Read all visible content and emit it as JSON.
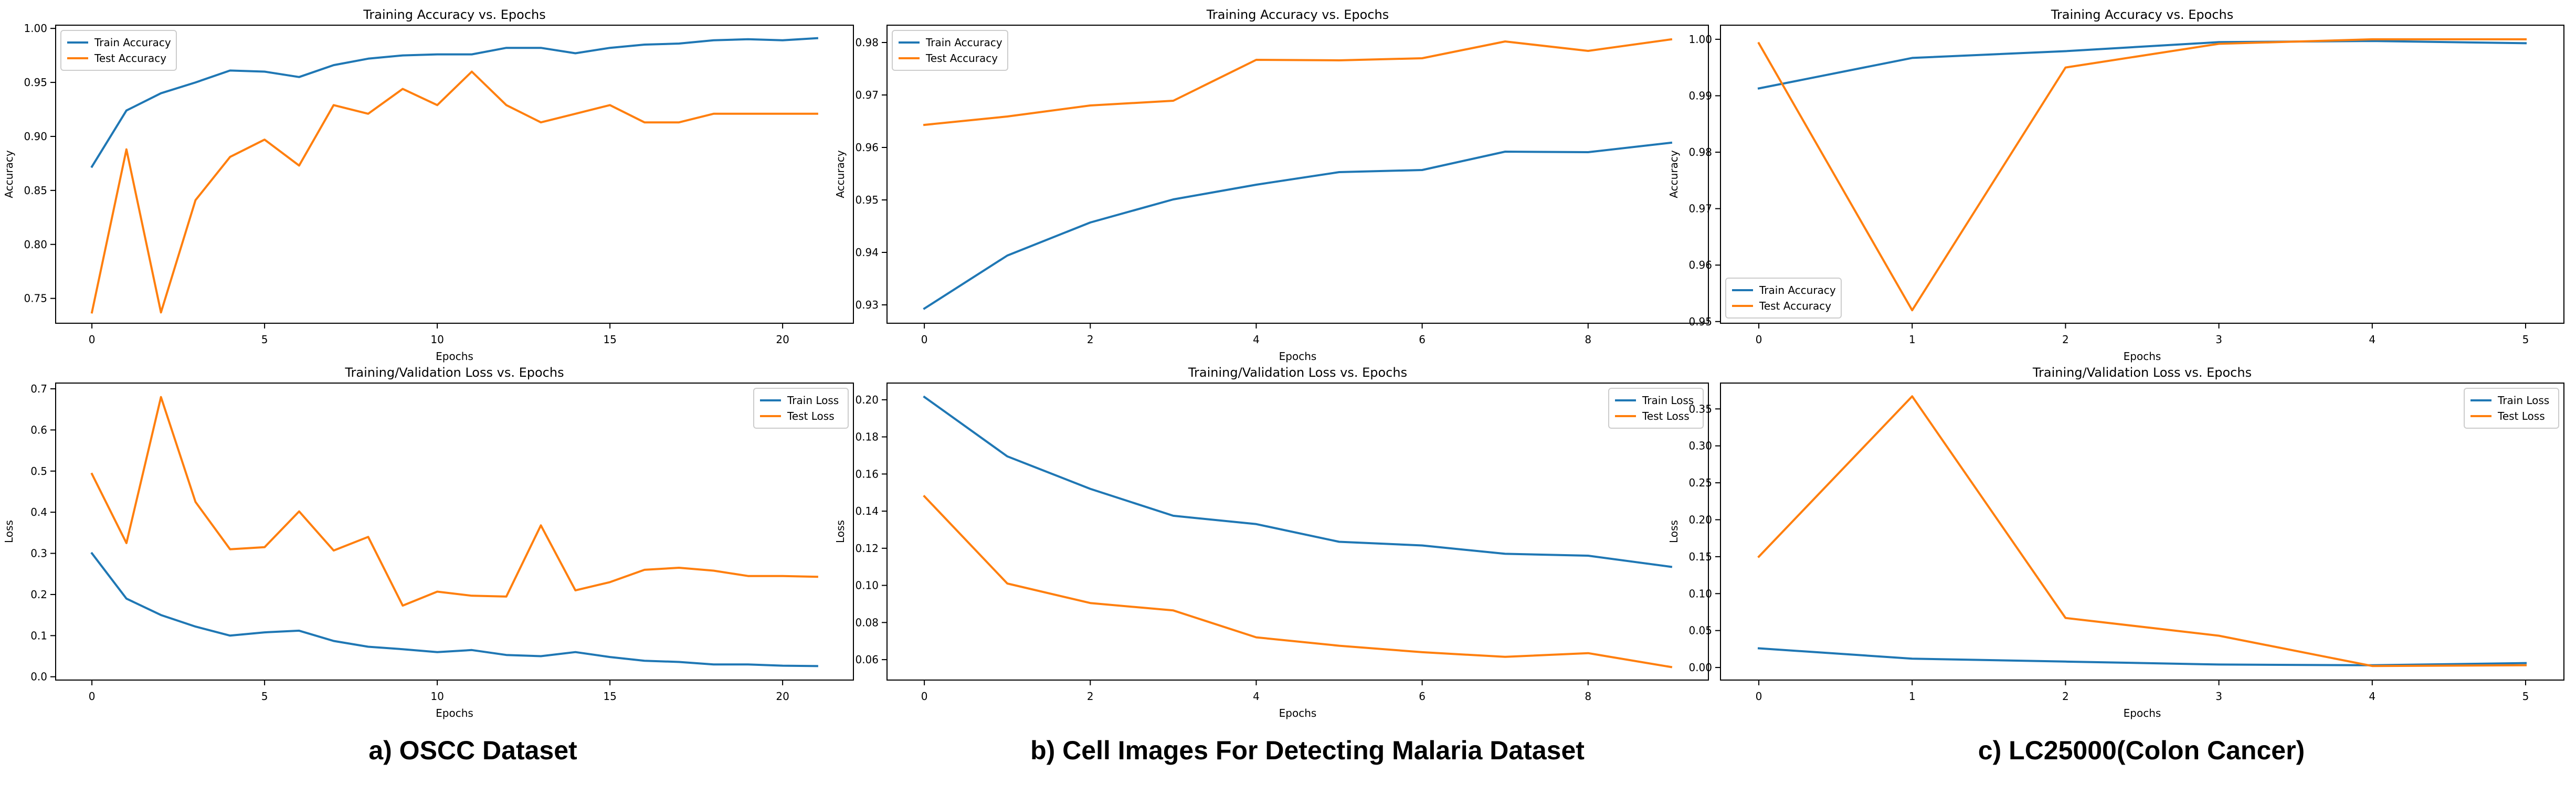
{
  "captions": [
    "a) OSCC Dataset",
    "b) Cell Images For Detecting Malaria Dataset",
    "c) LC25000(Colon Cancer)"
  ],
  "chart_data": [
    {
      "type": "line",
      "title": "Training Accuracy vs. Epochs",
      "xlabel": "Epochs",
      "ylabel": "Accuracy",
      "xlim": [
        -1.05,
        22.05
      ],
      "ylim": [
        0.727,
        1.003
      ],
      "xticks": [
        0,
        5,
        10,
        15,
        20
      ],
      "yticks": [
        0.75,
        0.8,
        0.85,
        0.9,
        0.95,
        1.0
      ],
      "ytick_labels": [
        "0.75",
        "0.80",
        "0.85",
        "0.90",
        "0.95",
        "1.00"
      ],
      "legend": "upper left",
      "x": [
        0,
        1,
        2,
        3,
        4,
        5,
        6,
        7,
        8,
        9,
        10,
        11,
        12,
        13,
        14,
        15,
        16,
        17,
        18,
        19,
        20,
        21
      ],
      "series": [
        {
          "name": "Train Accuracy",
          "color": "#1f77b4",
          "values": [
            0.872,
            0.924,
            0.94,
            0.95,
            0.961,
            0.96,
            0.955,
            0.966,
            0.972,
            0.975,
            0.976,
            0.976,
            0.982,
            0.982,
            0.977,
            0.982,
            0.985,
            0.986,
            0.989,
            0.99,
            0.989,
            0.991
          ]
        },
        {
          "name": "Test Accuracy",
          "color": "#ff7f0e",
          "values": [
            0.737,
            0.888,
            0.737,
            0.841,
            0.881,
            0.897,
            0.873,
            0.929,
            0.921,
            0.944,
            0.929,
            0.96,
            0.929,
            0.913,
            0.921,
            0.929,
            0.913,
            0.913,
            0.921,
            0.921,
            0.921,
            0.921
          ]
        }
      ]
    },
    {
      "type": "line",
      "title": "Training Accuracy vs. Epochs",
      "xlabel": "Epochs",
      "ylabel": "Accuracy",
      "xlim": [
        -0.45,
        9.45
      ],
      "ylim": [
        0.9265,
        0.9833
      ],
      "xticks": [
        0,
        2,
        4,
        6,
        8
      ],
      "yticks": [
        0.93,
        0.94,
        0.95,
        0.96,
        0.97,
        0.98
      ],
      "ytick_labels": [
        "0.93",
        "0.94",
        "0.95",
        "0.96",
        "0.97",
        "0.98"
      ],
      "legend": "upper left",
      "x": [
        0,
        1,
        2,
        3,
        4,
        5,
        6,
        7,
        8,
        9
      ],
      "series": [
        {
          "name": "Train Accuracy",
          "color": "#1f77b4",
          "values": [
            0.9293,
            0.9394,
            0.9457,
            0.9501,
            0.9529,
            0.9553,
            0.9557,
            0.9592,
            0.9591,
            0.9609
          ]
        },
        {
          "name": "Test Accuracy",
          "color": "#ff7f0e",
          "values": [
            0.9643,
            0.9659,
            0.968,
            0.9689,
            0.9767,
            0.9766,
            0.977,
            0.9802,
            0.9784,
            0.9806
          ]
        }
      ]
    },
    {
      "type": "line",
      "title": "Training Accuracy vs. Epochs",
      "xlabel": "Epochs",
      "ylabel": "Accuracy",
      "xlim": [
        -0.25,
        5.25
      ],
      "ylim": [
        0.9497,
        1.0025
      ],
      "xticks": [
        0,
        1,
        2,
        3,
        4,
        5
      ],
      "yticks": [
        0.95,
        0.96,
        0.97,
        0.98,
        0.99,
        1.0
      ],
      "ytick_labels": [
        "0.95",
        "0.96",
        "0.97",
        "0.98",
        "0.99",
        "1.00"
      ],
      "legend": "lower left",
      "x": [
        0,
        1,
        2,
        3,
        4,
        5
      ],
      "series": [
        {
          "name": "Train Accuracy",
          "color": "#1f77b4",
          "values": [
            0.9913,
            0.9967,
            0.9979,
            0.9995,
            0.9997,
            0.9993
          ]
        },
        {
          "name": "Test Accuracy",
          "color": "#ff7f0e",
          "values": [
            0.9993,
            0.952,
            0.995,
            0.9992,
            1.0,
            1.0
          ]
        }
      ]
    },
    {
      "type": "line",
      "title": "Training/Validation Loss vs. Epochs",
      "xlabel": "Epochs",
      "ylabel": "Loss",
      "xlim": [
        -1.05,
        22.05
      ],
      "ylim": [
        -0.008,
        0.714
      ],
      "xticks": [
        0,
        5,
        10,
        15,
        20
      ],
      "yticks": [
        0.0,
        0.1,
        0.2,
        0.3,
        0.4,
        0.5,
        0.6,
        0.7
      ],
      "ytick_labels": [
        "0.0",
        "0.1",
        "0.2",
        "0.3",
        "0.4",
        "0.5",
        "0.6",
        "0.7"
      ],
      "legend": "upper right",
      "x": [
        0,
        1,
        2,
        3,
        4,
        5,
        6,
        7,
        8,
        9,
        10,
        11,
        12,
        13,
        14,
        15,
        16,
        17,
        18,
        19,
        20,
        21
      ],
      "series": [
        {
          "name": "Train Loss",
          "color": "#1f77b4",
          "values": [
            0.3,
            0.19,
            0.15,
            0.122,
            0.1,
            0.108,
            0.112,
            0.087,
            0.073,
            0.067,
            0.06,
            0.065,
            0.053,
            0.05,
            0.06,
            0.048,
            0.039,
            0.036,
            0.03,
            0.03,
            0.027,
            0.026
          ]
        },
        {
          "name": "Test Loss",
          "color": "#ff7f0e",
          "values": [
            0.493,
            0.325,
            0.68,
            0.425,
            0.31,
            0.315,
            0.402,
            0.307,
            0.34,
            0.173,
            0.207,
            0.197,
            0.195,
            0.368,
            0.21,
            0.23,
            0.26,
            0.265,
            0.258,
            0.245,
            0.245,
            0.243
          ]
        }
      ]
    },
    {
      "type": "line",
      "title": "Training/Validation Loss vs. Epochs",
      "xlabel": "Epochs",
      "ylabel": "Loss",
      "xlim": [
        -0.45,
        9.45
      ],
      "ylim": [
        0.049,
        0.209
      ],
      "xticks": [
        0,
        2,
        4,
        6,
        8
      ],
      "yticks": [
        0.06,
        0.08,
        0.1,
        0.12,
        0.14,
        0.16,
        0.18,
        0.2
      ],
      "ytick_labels": [
        "0.06",
        "0.08",
        "0.10",
        "0.12",
        "0.14",
        "0.16",
        "0.18",
        "0.20"
      ],
      "legend": "upper right",
      "x": [
        0,
        1,
        2,
        3,
        4,
        5,
        6,
        7,
        8,
        9
      ],
      "series": [
        {
          "name": "Train Loss",
          "color": "#1f77b4",
          "values": [
            0.2015,
            0.1695,
            0.152,
            0.1375,
            0.133,
            0.1235,
            0.1215,
            0.117,
            0.116,
            0.11
          ]
        },
        {
          "name": "Test Loss",
          "color": "#ff7f0e",
          "values": [
            0.148,
            0.101,
            0.0905,
            0.0865,
            0.072,
            0.0675,
            0.064,
            0.0615,
            0.0635,
            0.056
          ]
        }
      ]
    },
    {
      "type": "line",
      "title": "Training/Validation Loss vs. Epochs",
      "xlabel": "Epochs",
      "ylabel": "Loss",
      "xlim": [
        -0.25,
        5.25
      ],
      "ylim": [
        -0.017,
        0.385
      ],
      "xticks": [
        0,
        1,
        2,
        3,
        4,
        5
      ],
      "yticks": [
        0.0,
        0.05,
        0.1,
        0.15,
        0.2,
        0.25,
        0.3,
        0.35
      ],
      "ytick_labels": [
        "0.00",
        "0.05",
        "0.10",
        "0.15",
        "0.20",
        "0.25",
        "0.30",
        "0.35"
      ],
      "legend": "upper right",
      "x": [
        0,
        1,
        2,
        3,
        4,
        5
      ],
      "series": [
        {
          "name": "Train Loss",
          "color": "#1f77b4",
          "values": [
            0.026,
            0.012,
            0.008,
            0.004,
            0.003,
            0.006
          ]
        },
        {
          "name": "Test Loss",
          "color": "#ff7f0e",
          "values": [
            0.15,
            0.367,
            0.067,
            0.043,
            0.002,
            0.003
          ]
        }
      ]
    }
  ]
}
